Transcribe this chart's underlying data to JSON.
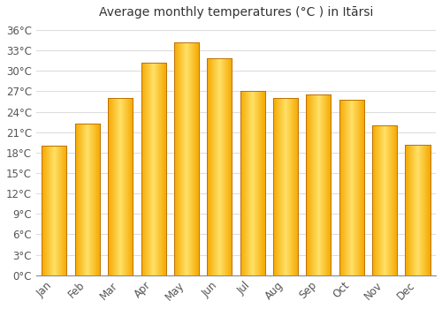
{
  "title": "Average monthly temperatures (°C ) in Itārsi",
  "months": [
    "Jan",
    "Feb",
    "Mar",
    "Apr",
    "May",
    "Jun",
    "Jul",
    "Aug",
    "Sep",
    "Oct",
    "Nov",
    "Dec"
  ],
  "values": [
    19.0,
    22.2,
    26.0,
    31.2,
    34.2,
    31.8,
    27.0,
    26.0,
    26.5,
    25.8,
    22.0,
    19.2
  ],
  "bar_color_bottom": "#F5A800",
  "bar_color_top": "#FFD966",
  "bar_color_left_edge": "#E09000",
  "bar_color_right_edge": "#FFB800",
  "background_color": "#FFFFFF",
  "grid_color": "#DDDDDD",
  "ylim": [
    0,
    37
  ],
  "yticks": [
    0,
    3,
    6,
    9,
    12,
    15,
    18,
    21,
    24,
    27,
    30,
    33,
    36
  ],
  "ylabel_suffix": "°C",
  "title_fontsize": 10,
  "tick_fontsize": 8.5,
  "bar_width": 0.75
}
